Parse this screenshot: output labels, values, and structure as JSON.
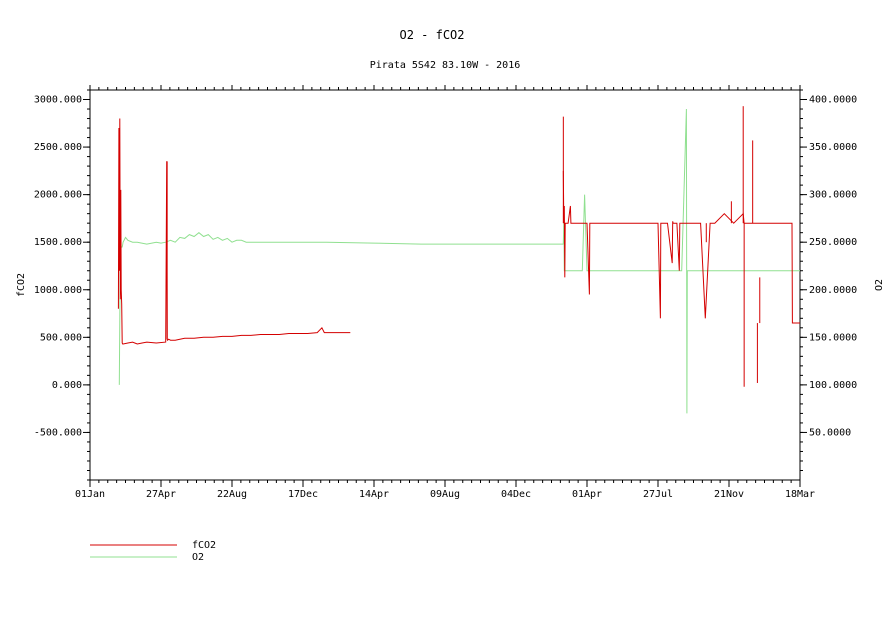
{
  "chart_data": {
    "type": "line",
    "title": "O2 - fCO2",
    "subtitle": "Pirata 5S42 83.10W - 2016",
    "y_left_label": "fCO2",
    "y_right_label": "O2",
    "x_tick_labels": [
      "01Jan",
      "27Apr",
      "22Aug",
      "17Dec",
      "14Apr",
      "09Aug",
      "04Dec",
      "01Apr",
      "27Jul",
      "21Nov",
      "18Mar"
    ],
    "y_left_ticks": [
      "3000.000",
      "2500.000",
      "2000.000",
      "1500.000",
      "1000.000",
      "500.000",
      "0.000",
      "-500.000"
    ],
    "y_right_ticks": [
      "400.0000",
      "350.0000",
      "300.0000",
      "250.0000",
      "200.0000",
      "150.0000",
      "100.0000",
      "50.0000"
    ],
    "y_left_range": [
      -1000,
      3100
    ],
    "y_right_range": [
      0,
      410
    ],
    "legend_placement": "bottom-left",
    "colors": {
      "fCO2": "#d40000",
      "O2": "#90e090"
    },
    "series": [
      {
        "name": "fCO2",
        "axis": "left",
        "color": "#d40000",
        "x": [
          0.06,
          0.061,
          0.062,
          0.063,
          0.064,
          0.065,
          0.066,
          0.067,
          0.068,
          0.069,
          0.07,
          0.08,
          0.09,
          0.1,
          0.11,
          0.12,
          0.14,
          0.16,
          0.162,
          0.163,
          0.164,
          0.166,
          0.17,
          0.18,
          0.19,
          0.2,
          0.22,
          0.24,
          0.26,
          0.28,
          0.3,
          0.32,
          0.34,
          0.36,
          0.38,
          0.4,
          0.42,
          0.44,
          0.46,
          0.48,
          0.49,
          0.495,
          0.5,
          0.52,
          0.54,
          0.55,
          null,
          1.0,
          1.001,
          1.002,
          1.003,
          1.004,
          1.005,
          1.01,
          1.015,
          1.016,
          1.017,
          1.02,
          1.03,
          1.04,
          1.05,
          1.055,
          1.056,
          1.057,
          1.06,
          1.08,
          1.1,
          1.12,
          1.14,
          1.16,
          1.18,
          1.2,
          1.205,
          1.206,
          1.21,
          1.22,
          1.23,
          1.231,
          1.232,
          1.24,
          1.245,
          1.246,
          1.247,
          1.25,
          1.26,
          1.27,
          1.28,
          1.281,
          1.282,
          1.29,
          1.3,
          1.31,
          1.32,
          1.34,
          1.36,
          1.38,
          1.382,
          1.383,
          1.384,
          1.4,
          1.42,
          1.44,
          1.46,
          1.47,
          1.48,
          1.482,
          1.483,
          1.484,
          1.486,
          1.49,
          1.495,
          1.5
        ],
        "y": [
          800,
          2700,
          1200,
          2800,
          900,
          2050,
          1000,
          850,
          440,
          430,
          430,
          440,
          450,
          430,
          440,
          450,
          440,
          450,
          2350,
          480,
          470,
          480,
          470,
          470,
          480,
          490,
          490,
          500,
          500,
          510,
          510,
          520,
          520,
          530,
          530,
          530,
          540,
          540,
          540,
          550,
          600,
          550,
          550,
          550,
          550,
          550,
          null,
          2250,
          1700,
          1880,
          1130,
          1700,
          1700,
          1700,
          1880,
          1700,
          1700,
          1700,
          1700,
          1700,
          1700,
          950,
          1700,
          1700,
          1700,
          1700,
          1700,
          1700,
          1700,
          1700,
          1700,
          1700,
          700,
          1700,
          1700,
          1700,
          1280,
          1720,
          1700,
          1700,
          1200,
          1700,
          1700,
          1700,
          1700,
          1700,
          1700,
          1700,
          1700,
          1700,
          700,
          1700,
          1700,
          1800,
          1700,
          1800,
          1700,
          1700,
          1700,
          1700,
          1700,
          1700,
          1700,
          1700,
          1700,
          1700,
          1700,
          650,
          650,
          650,
          650,
          650
        ],
        "spikes": [
          {
            "x": 0.163,
            "from": 480,
            "to": 2350
          },
          {
            "x": 1.0,
            "from": 1700,
            "to": 2820
          },
          {
            "x": 1.38,
            "from": 1700,
            "to": 2930
          },
          {
            "x": 1.382,
            "from": 1700,
            "to": -20
          },
          {
            "x": 1.4,
            "from": 1700,
            "to": 2570
          },
          {
            "x": 1.41,
            "from": 650,
            "to": 20
          },
          {
            "x": 1.415,
            "from": 650,
            "to": 1130
          },
          {
            "x": 1.355,
            "from": 1700,
            "to": 1930
          },
          {
            "x": 1.302,
            "from": 1700,
            "to": 1500
          }
        ]
      },
      {
        "name": "O2",
        "axis": "right",
        "color": "#90e090",
        "x": [
          0.062,
          0.064,
          0.066,
          0.068,
          0.07,
          0.075,
          0.08,
          0.09,
          0.1,
          0.12,
          0.14,
          0.15,
          0.16,
          0.17,
          0.18,
          0.19,
          0.2,
          0.21,
          0.22,
          0.23,
          0.24,
          0.25,
          0.26,
          0.27,
          0.28,
          0.29,
          0.3,
          0.31,
          0.32,
          0.33,
          0.4,
          0.5,
          0.6,
          0.7,
          0.8,
          0.9,
          1.0,
          1.001,
          1.002,
          1.01,
          1.02,
          1.03,
          1.04,
          1.045,
          1.05,
          1.1,
          1.2,
          1.25,
          1.26,
          1.261,
          1.262,
          1.3,
          1.35,
          1.38,
          1.385,
          1.39,
          1.395,
          1.4,
          1.42,
          1.45,
          1.48,
          1.5
        ],
        "y": [
          100,
          240,
          245,
          245,
          250,
          255,
          252,
          250,
          250,
          248,
          250,
          249,
          250,
          252,
          250,
          255,
          254,
          258,
          256,
          260,
          256,
          258,
          253,
          255,
          252,
          254,
          250,
          252,
          252,
          250,
          250,
          250,
          249,
          248,
          248,
          248,
          248,
          270,
          220,
          220,
          220,
          220,
          220,
          300,
          220,
          220,
          220,
          220,
          390,
          70,
          220,
          220,
          220,
          220,
          220,
          220,
          220,
          220,
          220,
          220,
          220,
          220
        ]
      }
    ]
  },
  "legend": {
    "items": [
      {
        "label": "fCO2",
        "color": "#d40000"
      },
      {
        "label": "O2",
        "color": "#90e090"
      }
    ]
  }
}
